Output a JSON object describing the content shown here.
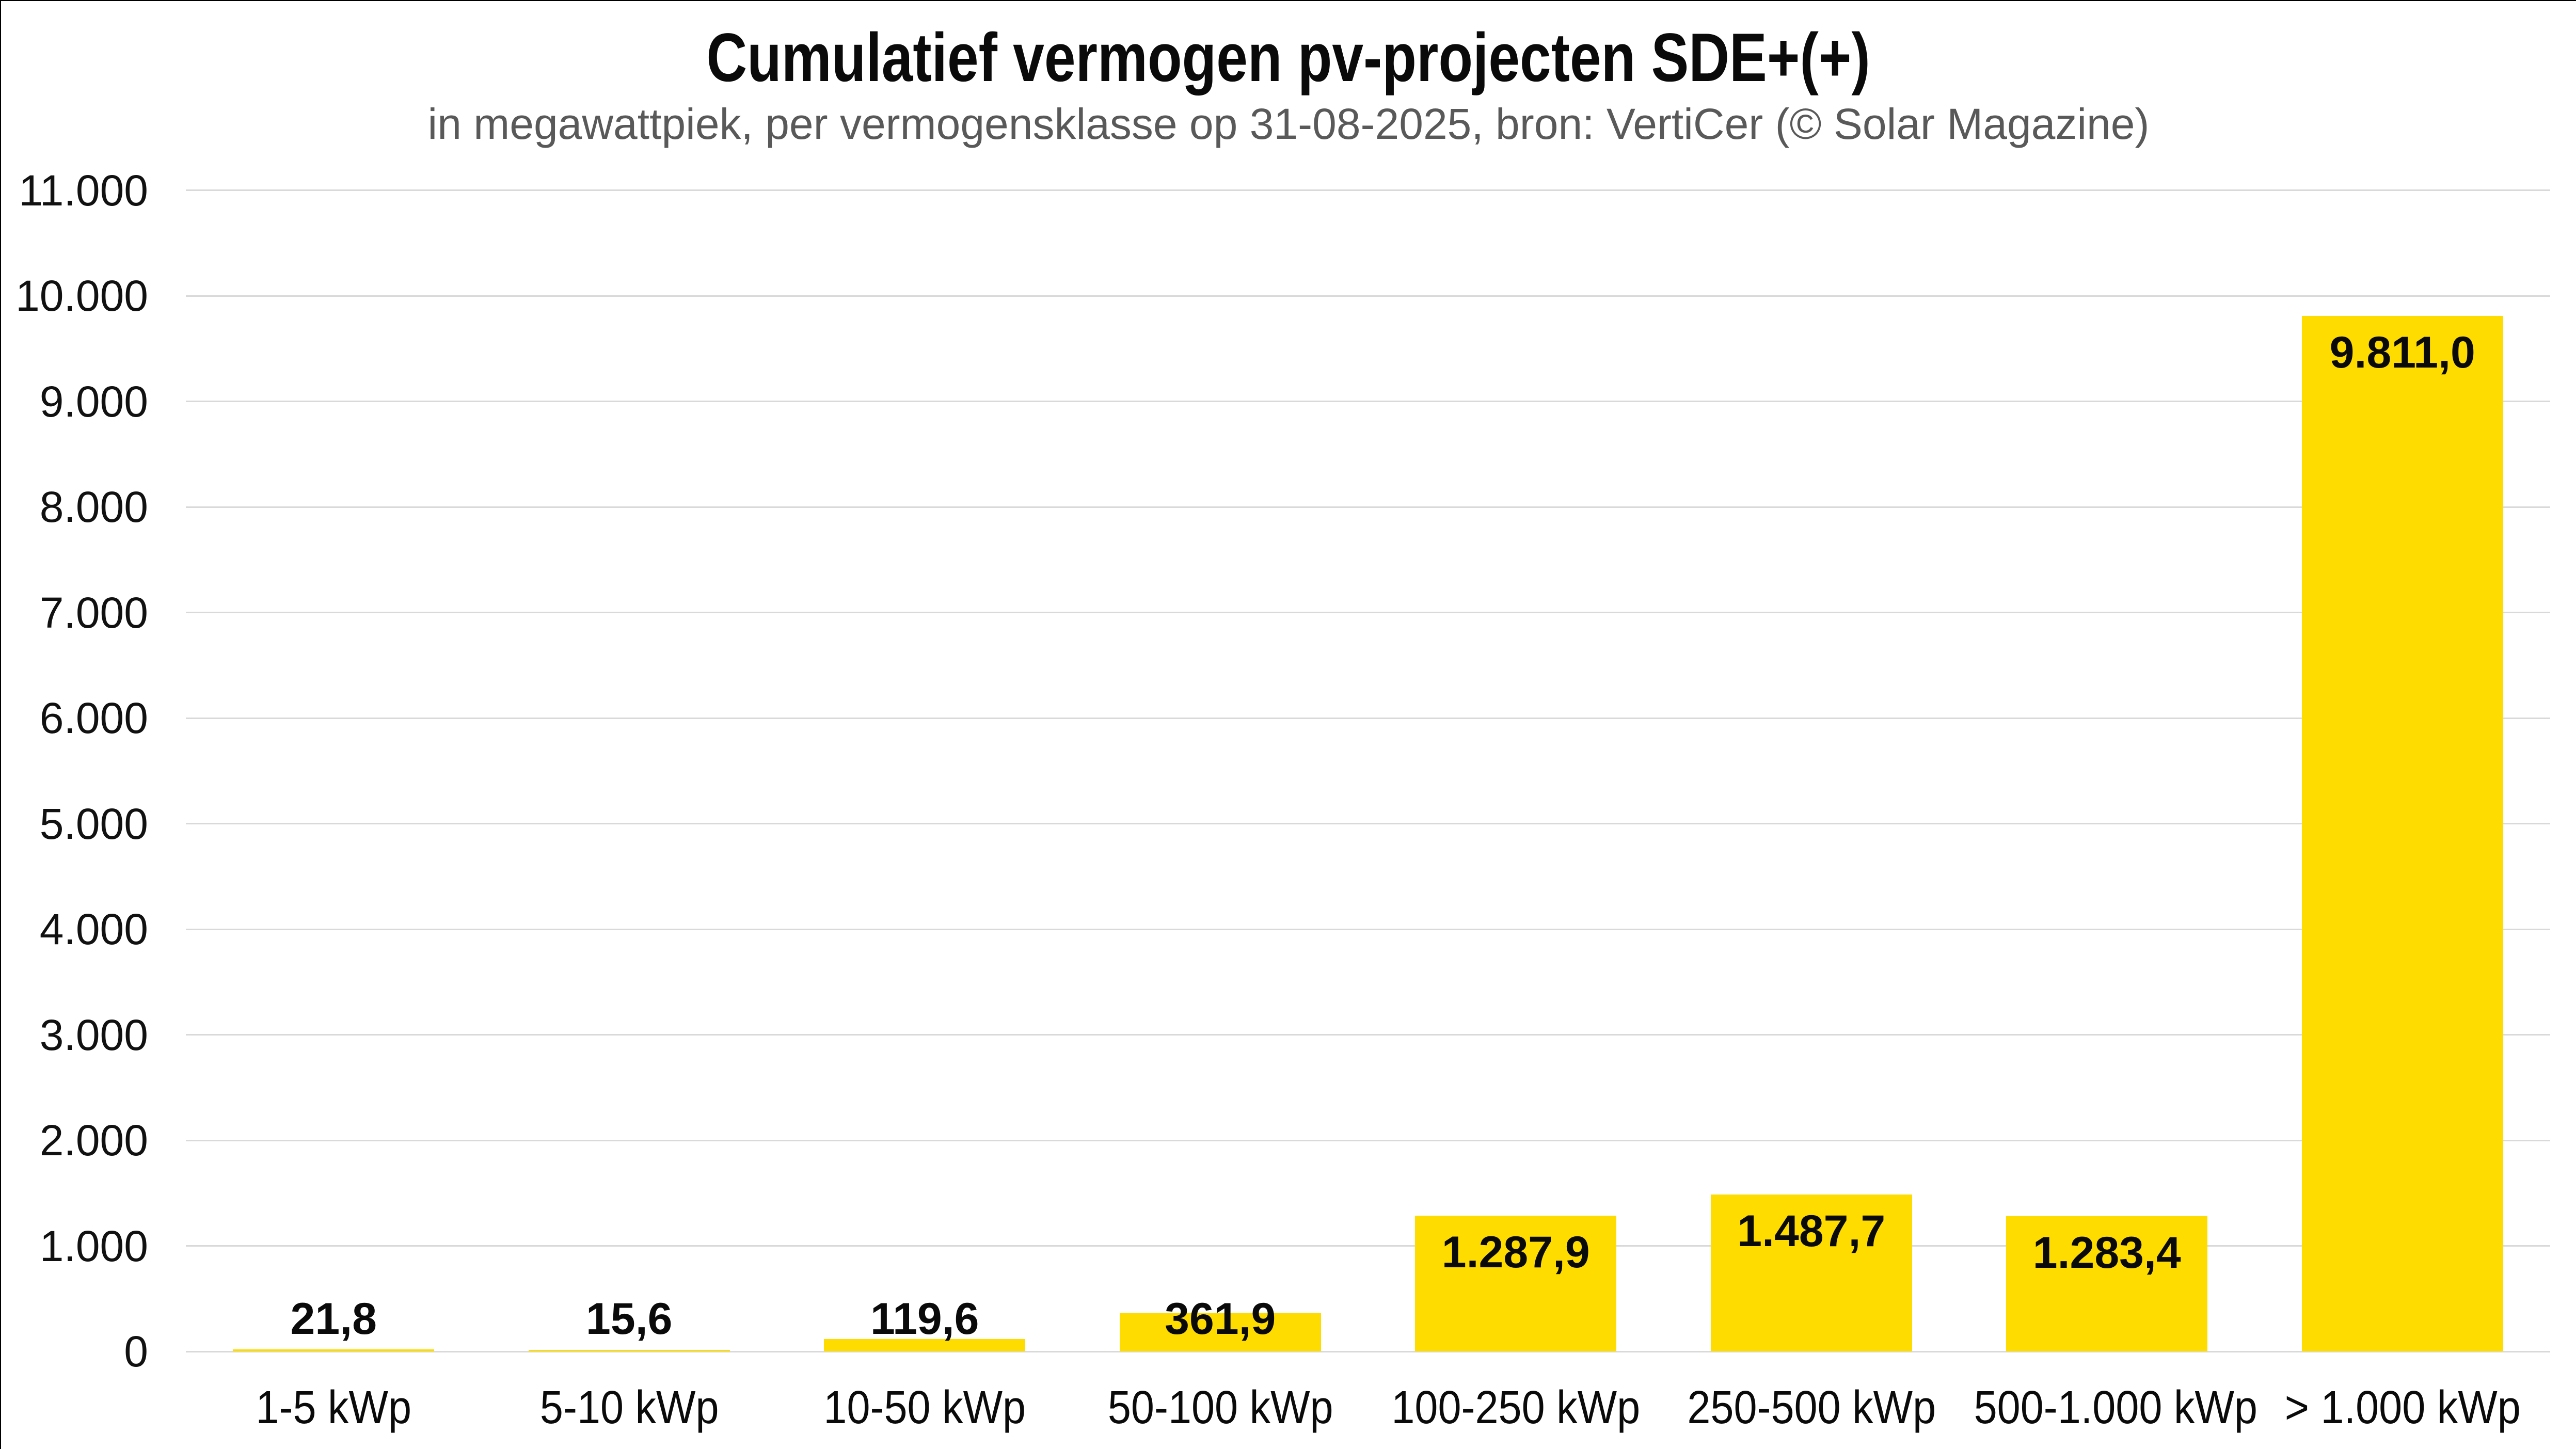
{
  "title": "Cumulatief vermogen pv-projecten SDE+(+)",
  "subtitle": "in megawattpiek, per vermogensklasse op 31-08-2025, bron: VertiCer (© Solar Magazine)",
  "colors": {
    "bar": "#FFDC00",
    "grid": "#D9D9D9",
    "title_text": "#0A0A0A",
    "subtitle_text": "#595959",
    "axis_text": "#111111",
    "background": "#FFFFFF",
    "border": "#000000"
  },
  "chart_data": {
    "type": "bar",
    "title": "Cumulatief vermogen pv-projecten SDE+(+)",
    "subtitle": "in megawattpiek, per vermogensklasse op 31-08-2025, bron: VertiCer (© Solar Magazine)",
    "categories": [
      "1-5 kWp",
      "5-10 kWp",
      "10-50 kWp",
      "50-100 kWp",
      "100-250 kWp",
      "250-500 kWp",
      "500-1.000 kWp",
      "> 1.000 kWp"
    ],
    "values": [
      21.8,
      15.6,
      119.6,
      361.9,
      1287.9,
      1487.7,
      1283.4,
      9811.0
    ],
    "value_labels": [
      "21,8",
      "15,6",
      "119,6",
      "361,9",
      "1.287,9",
      "1.487,7",
      "1.283,4",
      "9.811,0"
    ],
    "xlabel": "",
    "ylabel": "",
    "ylim": [
      0,
      11000
    ],
    "grid": "horizontal",
    "legend": "none",
    "yticks": [
      {
        "v": 0,
        "label": "0"
      },
      {
        "v": 1000,
        "label": "1.000"
      },
      {
        "v": 2000,
        "label": "2.000"
      },
      {
        "v": 3000,
        "label": "3.000"
      },
      {
        "v": 4000,
        "label": "4.000"
      },
      {
        "v": 5000,
        "label": "5.000"
      },
      {
        "v": 6000,
        "label": "6.000"
      },
      {
        "v": 7000,
        "label": "7.000"
      },
      {
        "v": 8000,
        "label": "8.000"
      },
      {
        "v": 9000,
        "label": "9.000"
      },
      {
        "v": 10000,
        "label": "10.000"
      },
      {
        "v": 11000,
        "label": "11.000"
      }
    ]
  }
}
